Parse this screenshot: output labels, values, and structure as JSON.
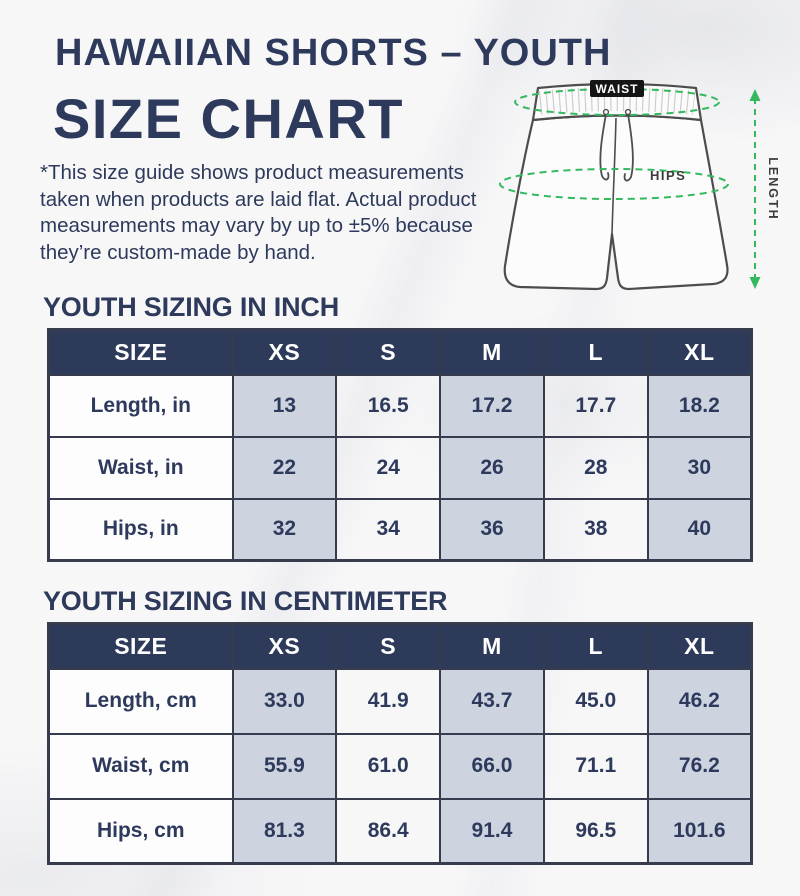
{
  "page": {
    "title_line1": "HAWAIIAN SHORTS – YOUTH",
    "title_line2": "SIZE CHART",
    "disclaimer": "*This size guide shows product measurements taken when products are laid flat. Actual product measurements may vary by up to ±5% because they’re custom-made by hand."
  },
  "diagram": {
    "waist_label": "WAIST",
    "hips_label": "HIPS",
    "length_label": "LENGTH"
  },
  "colors": {
    "navy": "#2e3a5c",
    "header_bg": "#2e3a5a",
    "cell_shaded": "#cdd4e0",
    "table_border": "#363c4e",
    "measure_green": "#34b95f"
  },
  "tables": [
    {
      "section_title": "YOUTH SIZING IN INCH",
      "columns": [
        "SIZE",
        "XS",
        "S",
        "M",
        "L",
        "XL"
      ],
      "rows": [
        {
          "label": "Length, in",
          "values": [
            "13",
            "16.5",
            "17.2",
            "17.7",
            "18.2"
          ]
        },
        {
          "label": "Waist, in",
          "values": [
            "22",
            "24",
            "26",
            "28",
            "30"
          ]
        },
        {
          "label": "Hips, in",
          "values": [
            "32",
            "34",
            "36",
            "38",
            "40"
          ]
        }
      ]
    },
    {
      "section_title": "YOUTH SIZING IN CENTIMETER",
      "columns": [
        "SIZE",
        "XS",
        "S",
        "M",
        "L",
        "XL"
      ],
      "rows": [
        {
          "label": "Length, cm",
          "values": [
            "33.0",
            "41.9",
            "43.7",
            "45.0",
            "46.2"
          ]
        },
        {
          "label": "Waist, cm",
          "values": [
            "55.9",
            "61.0",
            "66.0",
            "71.1",
            "76.2"
          ]
        },
        {
          "label": "Hips, cm",
          "values": [
            "81.3",
            "86.4",
            "91.4",
            "96.5",
            "101.6"
          ]
        }
      ]
    }
  ]
}
